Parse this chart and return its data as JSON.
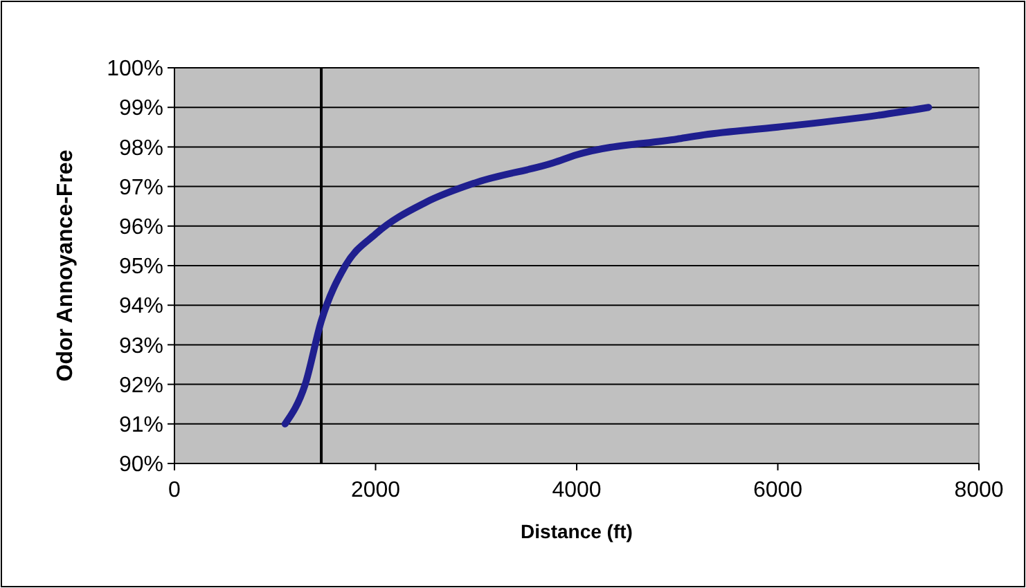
{
  "chart_data": {
    "type": "line",
    "xlabel": "Distance (ft)",
    "ylabel": "Odor Annoyance-Free",
    "x": [
      1100,
      1300,
      1460,
      1700,
      2000,
      2500,
      3000,
      3770,
      4000,
      5000,
      5250,
      6000,
      7000,
      7500
    ],
    "series": [
      {
        "color": "#1f1f8f",
        "values": [
          91,
          92,
          93.6,
          95,
          95.8,
          96.6,
          97.1,
          97.6,
          97.8,
          98.2,
          98.3,
          98.5,
          98.8,
          99
        ]
      }
    ],
    "xlim": [
      0,
      8000
    ],
    "xticks": [
      0,
      2000,
      4000,
      6000,
      8000
    ],
    "ylim": [
      90,
      100
    ],
    "yticks": [
      {
        "value": 90,
        "label": "90%"
      },
      {
        "value": 91,
        "label": "91%"
      },
      {
        "value": 92,
        "label": "92%"
      },
      {
        "value": 93,
        "label": "93%"
      },
      {
        "value": 94,
        "label": "94%"
      },
      {
        "value": 95,
        "label": "95%"
      },
      {
        "value": 96,
        "label": "96%"
      },
      {
        "value": 97,
        "label": "97%"
      },
      {
        "value": 98,
        "label": "98%"
      },
      {
        "value": 99,
        "label": "99%"
      },
      {
        "value": 100,
        "label": "100%"
      }
    ],
    "grid": "y",
    "marker": "none",
    "line_style": "solid",
    "ref_lines": [
      {
        "axis": "x",
        "value": 1460,
        "color": "#000000"
      }
    ]
  }
}
